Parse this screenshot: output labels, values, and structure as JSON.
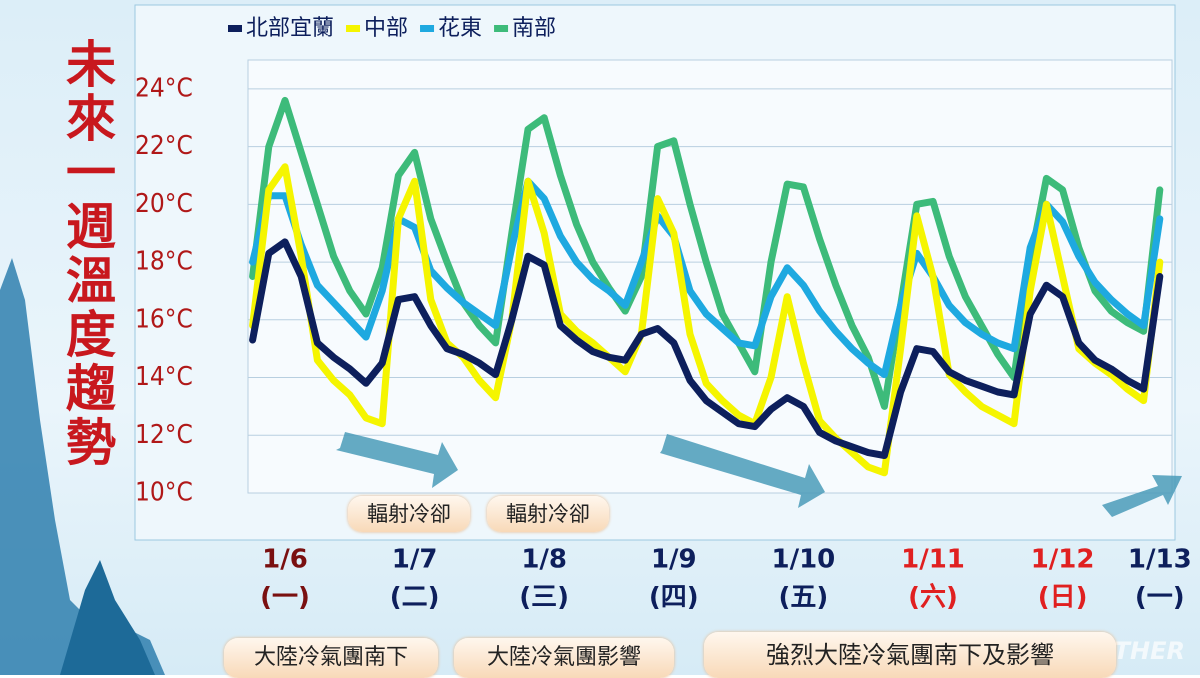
{
  "chart_data": {
    "type": "line",
    "title": "未來一週溫度趨勢",
    "categories": [
      null,
      null,
      "1/6",
      null,
      null,
      null,
      null,
      null,
      null,
      null,
      "1/7",
      null,
      null,
      null,
      null,
      null,
      null,
      null,
      "1/8",
      null,
      null,
      null,
      null,
      null,
      null,
      null,
      "1/9",
      null,
      null,
      null,
      null,
      null,
      null,
      null,
      "1/10",
      null,
      null,
      null,
      null,
      null,
      null,
      null,
      "1/11",
      null,
      null,
      null,
      null,
      null,
      null,
      null,
      "1/12",
      null,
      null,
      null,
      null,
      null,
      "1/13"
    ],
    "weekdays": [
      null,
      null,
      "(一)",
      null,
      null,
      null,
      null,
      null,
      null,
      null,
      "(二)",
      null,
      null,
      null,
      null,
      null,
      null,
      null,
      "(三)",
      null,
      null,
      null,
      null,
      null,
      null,
      null,
      "(四)",
      null,
      null,
      null,
      null,
      null,
      null,
      null,
      "(五)",
      null,
      null,
      null,
      null,
      null,
      null,
      null,
      "(六)",
      null,
      null,
      null,
      null,
      null,
      null,
      null,
      "(日)",
      null,
      null,
      null,
      null,
      null,
      "(一)"
    ],
    "category_colors": [
      null,
      null,
      "#7a1010",
      null,
      null,
      null,
      null,
      null,
      null,
      null,
      "#0d1f5c",
      null,
      null,
      null,
      null,
      null,
      null,
      null,
      "#0d1f5c",
      null,
      null,
      null,
      null,
      null,
      null,
      null,
      "#0d1f5c",
      null,
      null,
      null,
      null,
      null,
      null,
      null,
      "#0d1f5c",
      null,
      null,
      null,
      null,
      null,
      null,
      null,
      "#e02020",
      null,
      null,
      null,
      null,
      null,
      null,
      null,
      "#e02020",
      null,
      null,
      null,
      null,
      null,
      "#0d1f5c"
    ],
    "ylim": [
      10,
      25
    ],
    "yticks": [
      {
        "value": 10,
        "label": "10°C"
      },
      {
        "value": 12,
        "label": "12°C"
      },
      {
        "value": 14,
        "label": "14°C"
      },
      {
        "value": 16,
        "label": "16°C"
      },
      {
        "value": 18,
        "label": "18°C"
      },
      {
        "value": 20,
        "label": "20°C"
      },
      {
        "value": 22,
        "label": "22°C"
      },
      {
        "value": 24,
        "label": "24°C"
      }
    ],
    "grid": true,
    "series": [
      {
        "name": "北部宜蘭",
        "color": "#0d1f5c",
        "values": [
          15.3,
          18.3,
          18.7,
          17.5,
          15.2,
          14.7,
          14.3,
          13.8,
          14.5,
          16.7,
          16.8,
          15.8,
          15.0,
          14.8,
          14.5,
          14.1,
          16.0,
          18.2,
          17.9,
          15.8,
          15.3,
          14.9,
          14.7,
          14.6,
          15.5,
          15.7,
          15.2,
          13.9,
          13.2,
          12.8,
          12.4,
          12.3,
          12.9,
          13.3,
          13.0,
          12.1,
          11.8,
          11.6,
          11.4,
          11.3,
          13.5,
          15.0,
          14.9,
          14.2,
          13.9,
          13.7,
          13.5,
          13.4,
          16.2,
          17.2,
          16.8,
          15.2,
          14.6,
          14.3,
          13.9,
          13.6,
          17.5
        ]
      },
      {
        "name": "中部",
        "color": "#f5f500",
        "values": [
          15.8,
          20.5,
          21.3,
          18.2,
          14.6,
          13.9,
          13.4,
          12.6,
          12.4,
          19.5,
          20.8,
          16.7,
          15.2,
          14.7,
          13.9,
          13.3,
          16.0,
          20.8,
          19.0,
          16.2,
          15.6,
          15.2,
          14.7,
          14.2,
          15.5,
          20.2,
          19.0,
          15.5,
          13.8,
          13.2,
          12.7,
          12.4,
          14.0,
          16.8,
          14.5,
          12.5,
          11.9,
          11.4,
          10.9,
          10.7,
          15.0,
          19.6,
          17.5,
          14.1,
          13.5,
          13.0,
          12.7,
          12.4,
          17.0,
          20.0,
          17.5,
          15.0,
          14.5,
          14.1,
          13.6,
          13.2,
          18.0
        ]
      },
      {
        "name": "花東",
        "color": "#1ea9e0",
        "values": [
          18.0,
          20.3,
          20.3,
          18.6,
          17.2,
          16.6,
          16.0,
          15.4,
          17.0,
          19.5,
          19.2,
          17.7,
          17.1,
          16.6,
          16.2,
          15.8,
          18.5,
          20.8,
          20.2,
          18.9,
          18.0,
          17.4,
          17.0,
          16.5,
          18.0,
          19.6,
          18.9,
          17.0,
          16.2,
          15.7,
          15.2,
          15.1,
          16.8,
          17.8,
          17.2,
          16.3,
          15.6,
          15.0,
          14.5,
          14.1,
          16.5,
          18.3,
          17.5,
          16.5,
          15.9,
          15.5,
          15.2,
          15.0,
          18.5,
          20.0,
          19.4,
          18.2,
          17.3,
          16.7,
          16.2,
          15.8,
          19.5
        ]
      },
      {
        "name": "南部",
        "color": "#3dbb7a",
        "values": [
          17.5,
          22.0,
          23.6,
          21.8,
          20.0,
          18.2,
          17.0,
          16.2,
          17.8,
          21.0,
          21.8,
          19.5,
          18.0,
          16.6,
          15.8,
          15.2,
          19.0,
          22.6,
          23.0,
          21.0,
          19.3,
          18.0,
          17.1,
          16.3,
          17.5,
          22.0,
          22.2,
          20.0,
          18.0,
          16.2,
          15.2,
          14.2,
          18.0,
          20.7,
          20.6,
          18.8,
          17.2,
          15.8,
          14.7,
          13.0,
          16.5,
          20.0,
          20.1,
          18.2,
          16.8,
          15.8,
          14.8,
          14.0,
          18.0,
          20.9,
          20.5,
          18.5,
          17.0,
          16.3,
          15.9,
          15.6,
          20.5
        ]
      }
    ],
    "annotations": [
      "輻射冷卻",
      "輻射冷卻"
    ],
    "banners": [
      "大陸冷氣團南下",
      "大陸冷氣團影響",
      "強烈大陸冷氣團南下及影響"
    ],
    "watermark": "THER"
  }
}
